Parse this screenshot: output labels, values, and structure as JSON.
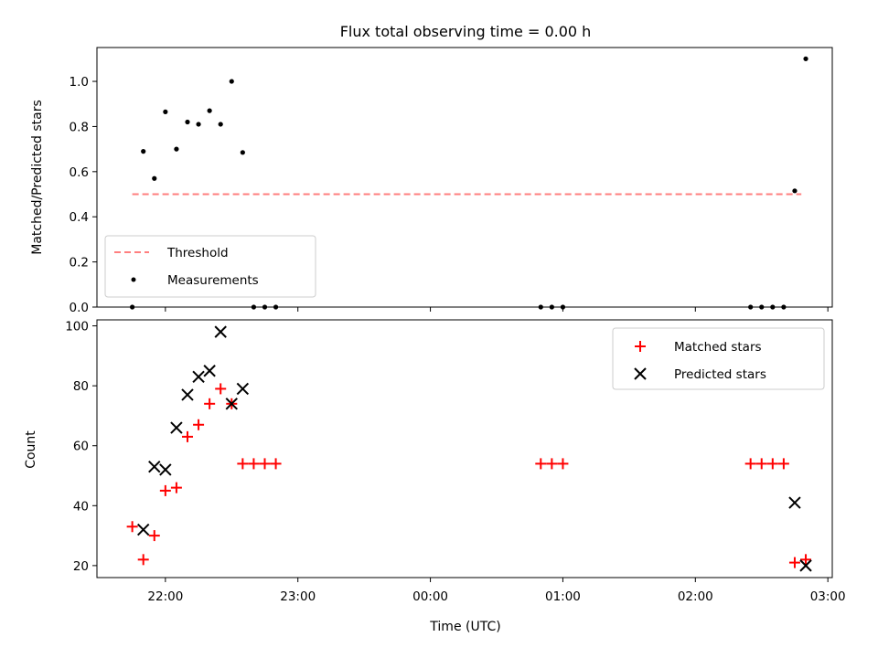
{
  "chart_data": [
    {
      "type": "scatter",
      "title": "Flux total observing time = 0.00 h",
      "xlabel": "",
      "ylabel": "Matched/Predicted stars",
      "xlim": [
        "21:29",
        "03:02"
      ],
      "ylim": [
        0,
        1.15
      ],
      "yticks": [
        "0.0",
        "0.2",
        "0.4",
        "0.6",
        "0.8",
        "1.0"
      ],
      "threshold": {
        "name": "Threshold",
        "value": 0.5,
        "x": [
          "21:45",
          "02:48"
        ],
        "color": "#ff7f7f",
        "style": "dashed"
      },
      "series": [
        {
          "name": "Measurements",
          "color": "#000000",
          "marker": "dot",
          "points": [
            [
              "21:45",
              0.0
            ],
            [
              "21:50",
              0.69
            ],
            [
              "21:55",
              0.57
            ],
            [
              "21:60",
              0.865
            ],
            [
              "22:05",
              0.7
            ],
            [
              "22:10",
              0.82
            ],
            [
              "22:15",
              0.81
            ],
            [
              "22:20",
              0.87
            ],
            [
              "22:25",
              0.81
            ],
            [
              "22:30",
              1.0
            ],
            [
              "22:35",
              0.685
            ],
            [
              "22:40",
              0.0
            ],
            [
              "22:45",
              0.0
            ],
            [
              "22:50",
              0.0
            ],
            [
              "00:50",
              0.0
            ],
            [
              "00:55",
              0.0
            ],
            [
              "01:00",
              0.0
            ],
            [
              "02:25",
              0.0
            ],
            [
              "02:30",
              0.0
            ],
            [
              "02:35",
              0.0
            ],
            [
              "02:40",
              0.0
            ],
            [
              "02:45",
              0.515
            ],
            [
              "02:50",
              1.1
            ]
          ]
        }
      ]
    },
    {
      "type": "scatter",
      "title": "",
      "xlabel": "Time (UTC)",
      "ylabel": "Count",
      "xlim": [
        "21:29",
        "03:02"
      ],
      "ylim": [
        16,
        102
      ],
      "xticks": [
        "22:00",
        "23:00",
        "00:00",
        "01:00",
        "02:00",
        "03:00"
      ],
      "yticks": [
        "20",
        "40",
        "60",
        "80",
        "100"
      ],
      "legend": "top-right",
      "series": [
        {
          "name": "Matched stars",
          "color": "#ff0000",
          "marker": "plus",
          "points": [
            [
              "21:45",
              33
            ],
            [
              "21:50",
              22
            ],
            [
              "21:55",
              30
            ],
            [
              "21:60",
              45
            ],
            [
              "22:05",
              46
            ],
            [
              "22:10",
              63
            ],
            [
              "22:15",
              67
            ],
            [
              "22:20",
              74
            ],
            [
              "22:25",
              79
            ],
            [
              "22:30",
              74
            ],
            [
              "22:35",
              54
            ],
            [
              "22:40",
              54
            ],
            [
              "22:45",
              54
            ],
            [
              "22:50",
              54
            ],
            [
              "00:50",
              54
            ],
            [
              "00:55",
              54
            ],
            [
              "01:00",
              54
            ],
            [
              "02:25",
              54
            ],
            [
              "02:30",
              54
            ],
            [
              "02:35",
              54
            ],
            [
              "02:40",
              54
            ],
            [
              "02:45",
              21
            ],
            [
              "02:50",
              22
            ]
          ]
        },
        {
          "name": "Predicted stars",
          "color": "#000000",
          "marker": "x",
          "points": [
            [
              "21:50",
              32
            ],
            [
              "21:55",
              53
            ],
            [
              "21:60",
              52
            ],
            [
              "22:05",
              66
            ],
            [
              "22:10",
              77
            ],
            [
              "22:15",
              83
            ],
            [
              "22:20",
              85
            ],
            [
              "22:25",
              98
            ],
            [
              "22:30",
              74
            ],
            [
              "22:35",
              79
            ],
            [
              "02:45",
              41
            ],
            [
              "02:50",
              20
            ]
          ]
        }
      ]
    }
  ]
}
